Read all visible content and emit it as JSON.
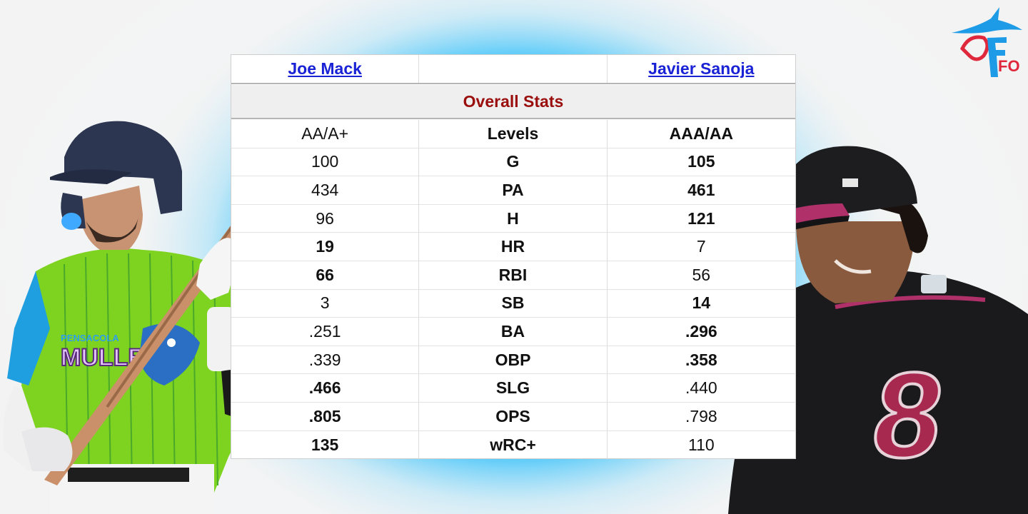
{
  "comparison": {
    "player_left": "Joe Mack",
    "player_right": "Javier Sanoja",
    "section_title": "Overall Stats",
    "rows": [
      {
        "stat": "Levels",
        "left": "AA/A+",
        "right": "AAA/AA",
        "left_bold": false,
        "right_bold": true
      },
      {
        "stat": "G",
        "left": "100",
        "right": "105",
        "left_bold": false,
        "right_bold": true
      },
      {
        "stat": "PA",
        "left": "434",
        "right": "461",
        "left_bold": false,
        "right_bold": true
      },
      {
        "stat": "H",
        "left": "96",
        "right": "121",
        "left_bold": false,
        "right_bold": true
      },
      {
        "stat": "HR",
        "left": "19",
        "right": "7",
        "left_bold": true,
        "right_bold": false
      },
      {
        "stat": "RBI",
        "left": "66",
        "right": "56",
        "left_bold": true,
        "right_bold": false
      },
      {
        "stat": "SB",
        "left": "3",
        "right": "14",
        "left_bold": false,
        "right_bold": true
      },
      {
        "stat": "BA",
        "left": ".251",
        "right": ".296",
        "left_bold": false,
        "right_bold": true
      },
      {
        "stat": "OBP",
        "left": ".339",
        "right": ".358",
        "left_bold": false,
        "right_bold": true
      },
      {
        "stat": "SLG",
        "left": ".466",
        "right": ".440",
        "left_bold": true,
        "right_bold": false
      },
      {
        "stat": "OPS",
        "left": ".805",
        "right": ".798",
        "left_bold": true,
        "right_bold": false
      },
      {
        "stat": "wRC+",
        "left": "135",
        "right": "110",
        "left_bold": true,
        "right_bold": false
      }
    ]
  },
  "images": {
    "left_jersey_text": "MULLETS",
    "left_jersey_city": "PENSACOLA",
    "right_jersey_number": "8",
    "logo_text": "FO"
  },
  "colors": {
    "link": "#1a22d6",
    "section_title": "#9a0e0e",
    "background_blue": "#00b2ff",
    "left_jersey": "#7ed321",
    "right_jersey": "#1a1a1c",
    "right_accent": "#b0306a"
  }
}
